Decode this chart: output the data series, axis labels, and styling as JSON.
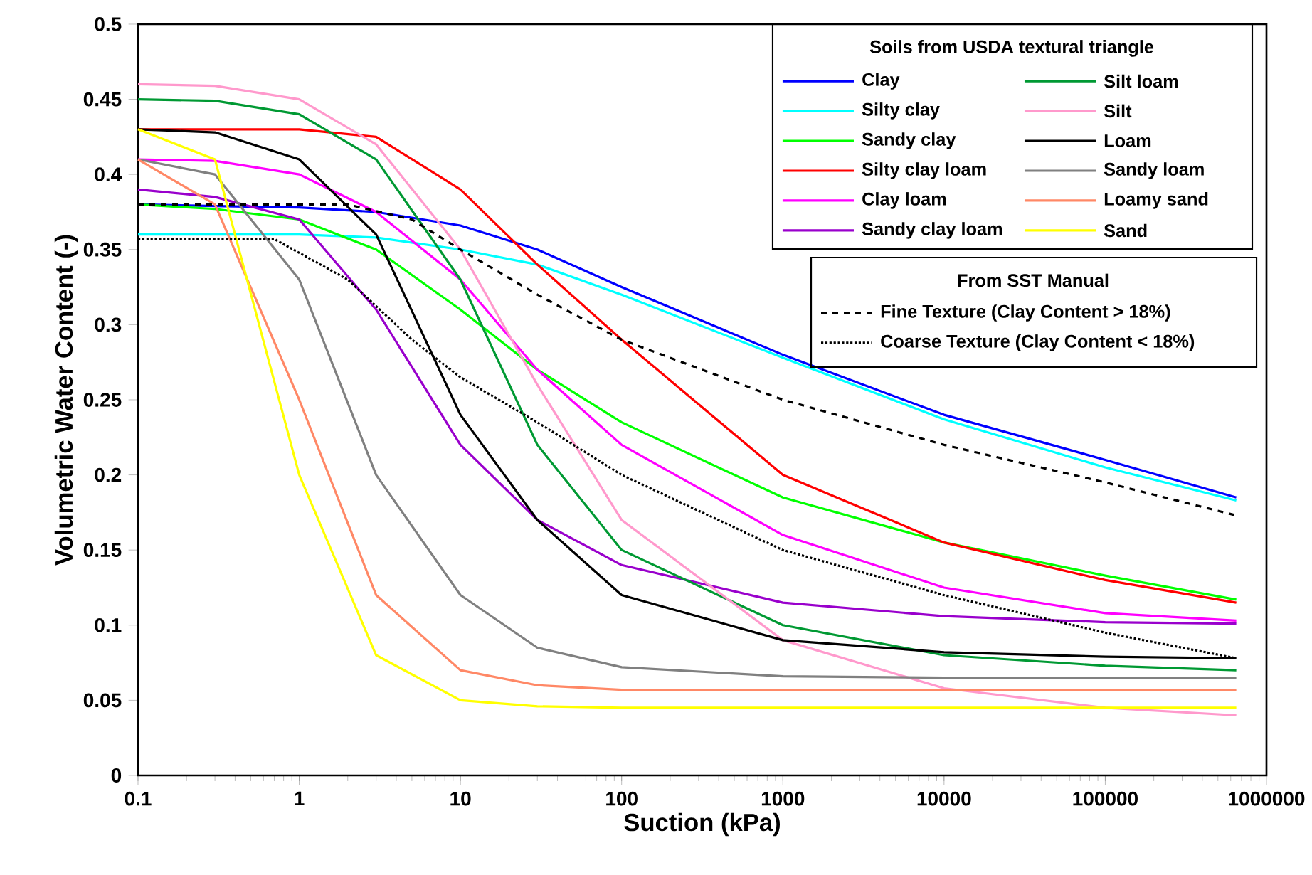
{
  "chart_data": {
    "type": "line",
    "xlabel": "Suction (kPa)",
    "ylabel": "Volumetric Water Content (-)",
    "legend_title": "Soils from USDA textural triangle",
    "annotations": [
      "From SST Manual"
    ],
    "log": "x",
    "legend": "top right",
    "marker": "none",
    "x": [
      0.1,
      0.3,
      1,
      3,
      10,
      30,
      100,
      1000,
      10000,
      100000,
      650000
    ],
    "xlim": [
      0.1,
      1000000
    ],
    "xticks": [
      0.1,
      1,
      10,
      100,
      1000,
      10000,
      100000,
      1000000
    ],
    "ylim": [
      0,
      0.5
    ],
    "yticks": [
      0,
      0.05,
      0.1,
      0.15,
      0.2,
      0.25,
      0.3,
      0.35,
      0.4,
      0.45,
      0.5
    ],
    "series": [
      {
        "name": "Clay",
        "color": "#0000ff",
        "values": [
          0.38,
          0.379,
          0.378,
          0.375,
          0.366,
          0.35,
          0.325,
          0.28,
          0.24,
          0.21,
          0.185
        ]
      },
      {
        "name": "Silty clay",
        "color": "#00ffff",
        "values": [
          0.36,
          0.36,
          0.36,
          0.358,
          0.35,
          0.34,
          0.32,
          0.278,
          0.237,
          0.205,
          0.183
        ]
      },
      {
        "name": "Sandy clay",
        "color": "#00ff00",
        "values": [
          0.38,
          0.377,
          0.37,
          0.35,
          0.31,
          0.27,
          0.235,
          0.185,
          0.155,
          0.133,
          0.117
        ]
      },
      {
        "name": "Silty clay loam",
        "color": "#ff0000",
        "values": [
          0.43,
          0.43,
          0.43,
          0.425,
          0.39,
          0.34,
          0.29,
          0.2,
          0.155,
          0.13,
          0.115
        ]
      },
      {
        "name": "Clay loam",
        "color": "#ff00ff",
        "values": [
          0.41,
          0.409,
          0.4,
          0.375,
          0.33,
          0.27,
          0.22,
          0.16,
          0.125,
          0.108,
          0.103
        ]
      },
      {
        "name": "Sandy clay loam",
        "color": "#9900cc",
        "values": [
          0.39,
          0.385,
          0.37,
          0.31,
          0.22,
          0.17,
          0.14,
          0.115,
          0.106,
          0.102,
          0.101
        ]
      },
      {
        "name": "Silt loam",
        "color": "#009933",
        "values": [
          0.45,
          0.449,
          0.44,
          0.41,
          0.33,
          0.22,
          0.15,
          0.1,
          0.08,
          0.073,
          0.07
        ]
      },
      {
        "name": "Silt",
        "color": "#ff99cc",
        "values": [
          0.46,
          0.459,
          0.45,
          0.42,
          0.35,
          0.26,
          0.17,
          0.09,
          0.058,
          0.045,
          0.04
        ]
      },
      {
        "name": "Loam",
        "color": "#000000",
        "values": [
          0.43,
          0.428,
          0.41,
          0.36,
          0.24,
          0.17,
          0.12,
          0.09,
          0.082,
          0.079,
          0.078
        ]
      },
      {
        "name": "Sandy loam",
        "color": "#808080",
        "values": [
          0.41,
          0.4,
          0.33,
          0.2,
          0.12,
          0.085,
          0.072,
          0.066,
          0.065,
          0.065,
          0.065
        ]
      },
      {
        "name": "Loamy sand",
        "color": "#ff8866",
        "values": [
          0.41,
          0.38,
          0.25,
          0.12,
          0.07,
          0.06,
          0.057,
          0.057,
          0.057,
          0.057,
          0.057
        ]
      },
      {
        "name": "Sand",
        "color": "#ffff00",
        "values": [
          0.43,
          0.41,
          0.2,
          0.08,
          0.05,
          0.046,
          0.045,
          0.045,
          0.045,
          0.045,
          0.045
        ]
      },
      {
        "name": "Fine Texture (Clay Content > 18%)",
        "color": "#000000",
        "line_style": "dashed",
        "x": [
          0.1,
          2,
          5,
          10,
          30,
          100,
          1000,
          10000,
          100000,
          650000
        ],
        "values": [
          0.38,
          0.38,
          0.37,
          0.35,
          0.32,
          0.29,
          0.25,
          0.22,
          0.195,
          0.173
        ]
      },
      {
        "name": "Coarse Texture (Clay Content < 18%)",
        "color": "#000000",
        "line_style": "dotted",
        "x": [
          0.1,
          0.7,
          2,
          5,
          10,
          30,
          100,
          1000,
          10000,
          100000,
          650000
        ],
        "values": [
          0.357,
          0.357,
          0.33,
          0.29,
          0.265,
          0.235,
          0.2,
          0.15,
          0.12,
          0.095,
          0.078
        ]
      }
    ]
  }
}
